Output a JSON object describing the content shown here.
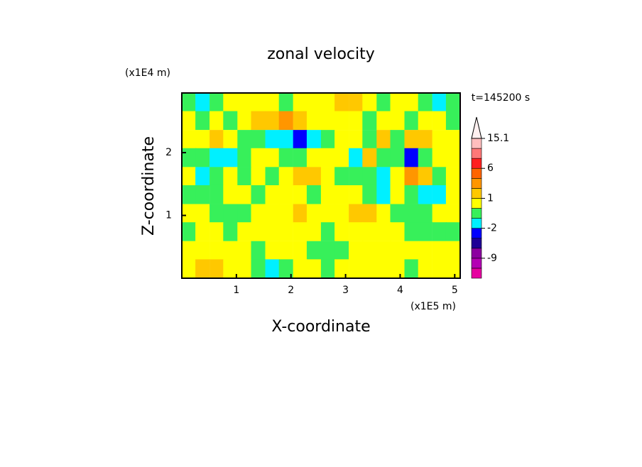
{
  "chart_data": {
    "type": "contour",
    "title": "zonal velocity",
    "x_label": "X-coordinate",
    "y_label": "Z-coordinate",
    "x_unit": "(x1E5 m)",
    "y_unit": "(x1E4 m)",
    "annotation": "t=145200 s",
    "xlim": [
      0,
      5.1
    ],
    "ylim": [
      0,
      2.95
    ],
    "xticks": [
      1,
      2,
      3,
      4,
      5
    ],
    "yticks": [
      1,
      2
    ],
    "x": [
      0.13,
      0.38,
      0.64,
      0.89,
      1.15,
      1.4,
      1.66,
      1.91,
      2.17,
      2.42,
      2.68,
      2.93,
      3.19,
      3.44,
      3.7,
      3.95,
      4.21,
      4.46,
      4.72,
      4.97
    ],
    "y": [
      2.8,
      2.51,
      2.21,
      1.92,
      1.62,
      1.33,
      1.03,
      0.74,
      0.44,
      0.15
    ],
    "z": [
      [
        -0.5,
        -1.5,
        -0.5,
        0.5,
        0.5,
        0.5,
        0.5,
        -0.5,
        0.5,
        0.5,
        0.5,
        1.5,
        1.5,
        0.5,
        -0.5,
        0.5,
        0.5,
        -0.5,
        -1.5,
        -0.5
      ],
      [
        0.5,
        -0.5,
        0.5,
        -0.5,
        0.5,
        1.5,
        1.5,
        3,
        1.5,
        0.5,
        0.5,
        0.5,
        0.5,
        -0.5,
        0.5,
        0.5,
        -0.5,
        0.5,
        0.5,
        -0.5
      ],
      [
        0.5,
        0.5,
        1.5,
        0.5,
        -0.5,
        -0.5,
        -1.5,
        -1.5,
        -3,
        -1.5,
        -0.5,
        0.5,
        0.5,
        -0.5,
        1.5,
        -0.5,
        1.5,
        1.5,
        0.5,
        0.5
      ],
      [
        -0.5,
        -0.5,
        -1.5,
        -1.5,
        -0.5,
        0.5,
        0.5,
        -0.5,
        -0.5,
        0.5,
        0.5,
        0.5,
        -1.5,
        1.5,
        -0.5,
        -0.5,
        -3,
        -0.5,
        0.5,
        0.5
      ],
      [
        0.5,
        -1.5,
        -0.5,
        0.5,
        -0.5,
        0.5,
        -0.5,
        0.5,
        1.5,
        1.5,
        0.5,
        -0.5,
        -0.5,
        -0.5,
        -1.5,
        0.5,
        3,
        1.5,
        -0.5,
        0.5
      ],
      [
        -0.5,
        -0.5,
        -0.5,
        0.5,
        0.5,
        -0.5,
        0.5,
        0.5,
        0.5,
        -0.5,
        0.5,
        0.5,
        0.5,
        -0.5,
        -1.5,
        0.5,
        -0.5,
        -1.5,
        -1.5,
        0.5
      ],
      [
        0.5,
        0.5,
        -0.5,
        -0.5,
        -0.5,
        0.5,
        0.5,
        0.5,
        1.5,
        0.5,
        0.5,
        0.5,
        1.5,
        1.5,
        0.5,
        -0.5,
        -0.5,
        -0.5,
        0.5,
        0.5
      ],
      [
        -0.5,
        0.5,
        0.5,
        -0.5,
        0.5,
        0.5,
        0.5,
        0.5,
        0.5,
        0.5,
        -0.5,
        0.5,
        0.5,
        0.5,
        0.5,
        0.5,
        -0.5,
        -0.5,
        -0.5,
        -0.5
      ],
      [
        0.5,
        0.5,
        0.5,
        0.5,
        0.5,
        -0.5,
        0.5,
        0.5,
        0.5,
        -0.5,
        -0.5,
        -0.5,
        0.5,
        0.5,
        0.5,
        0.5,
        0.5,
        0.5,
        0.5,
        0.5
      ],
      [
        0.5,
        1.5,
        1.5,
        0.5,
        0.5,
        -0.5,
        -1.5,
        -0.5,
        0.5,
        0.5,
        -0.5,
        0.5,
        0.5,
        0.5,
        0.5,
        0.5,
        -0.5,
        0.5,
        0.5,
        0.5
      ]
    ],
    "levels": [
      -12,
      -9,
      -6,
      -4,
      -2,
      -1,
      0,
      1,
      2,
      4,
      6,
      9,
      12,
      15.1
    ],
    "colors": [
      "#e600a0",
      "#b400b4",
      "#8c00a0",
      "#1e0096",
      "#0000ff",
      "#00f0ff",
      "#37f05a",
      "#ffff00",
      "#ffc800",
      "#ff9600",
      "#ff6400",
      "#ff2020",
      "#ff7878",
      "#ffbebe",
      "#fff0f0"
    ],
    "colorbar_ticks": [
      15.1,
      6,
      1,
      -2,
      -9
    ]
  }
}
